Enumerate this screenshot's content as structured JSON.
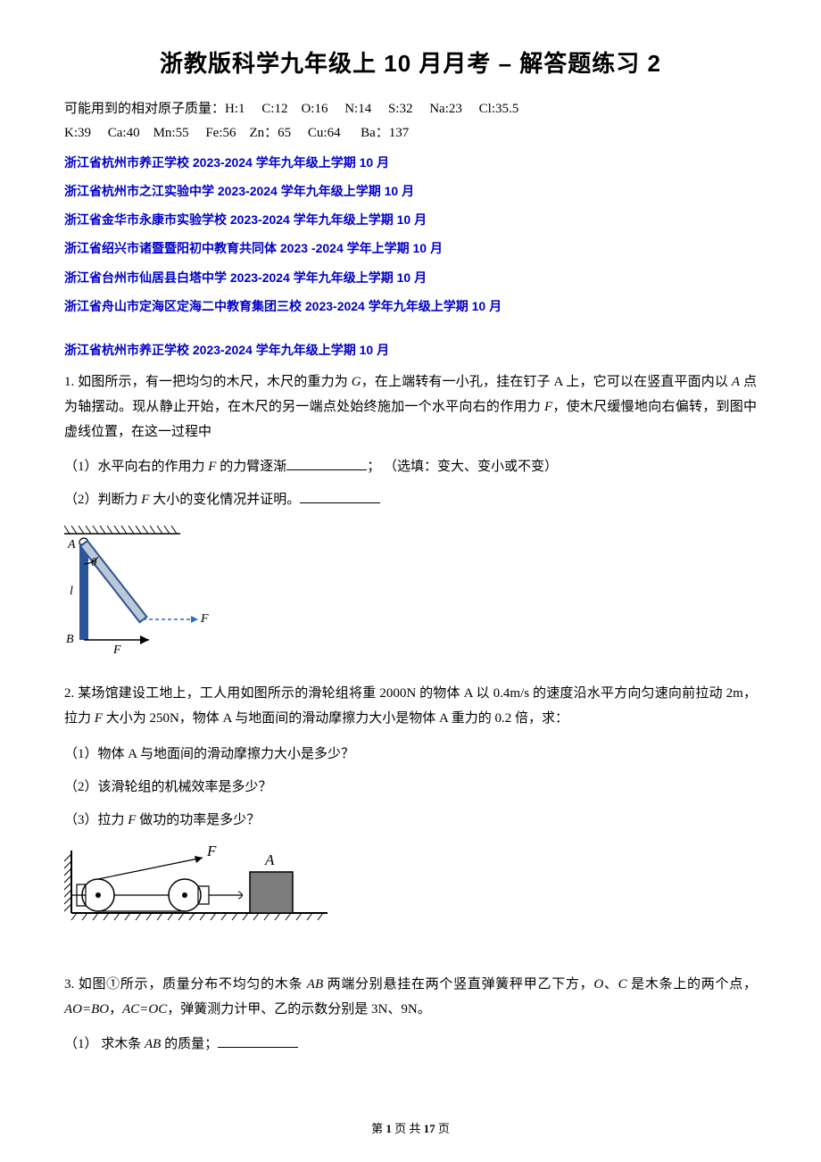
{
  "title": "浙教版科学九年级上 10 月月考 – 解答题练习 2",
  "atomic_masses": {
    "label": "可能用到的相对原子质量：",
    "row1": "H:1     C:12    O:16     N:14     S:32     Na:23     Cl:35.5",
    "row2": "K:39     Ca:40    Mn:55     Fe:56    Zn：65     Cu:64      Ba：137"
  },
  "source_links": [
    "浙江省杭州市养正学校 2023-2024 学年九年级上学期 10 月",
    "浙江省杭州市之江实验中学 2023-2024 学年九年级上学期 10 月",
    "浙江省金华市永康市实验学校 2023-2024 学年九年级上学期 10 月",
    "浙江省绍兴市诸暨暨阳初中教育共同体 2023 -2024 学年上学期 10 月",
    "浙江省台州市仙居县白塔中学 2023-2024 学年九年级上学期 10 月",
    "浙江省舟山市定海区定海二中教育集团三校 2023-2024 学年九年级上学期 10 月"
  ],
  "section_header": "浙江省杭州市养正学校 2023-2024 学年九年级上学期 10 月",
  "q1": {
    "prefix": "1. 如图所示，有一把均匀的木尺，木尺的重力为 ",
    "g": "G",
    "mid1": "，在上端转有一小孔，挂在钉子 A 上，它可以在竖直平面内以 ",
    "a": "A",
    "mid2": " 点为轴摆动。现从静止开始，在木尺的另一端点处始终施加一个水平向右的作用力 ",
    "f": "F",
    "end": "，使木尺缓慢地向右偏转，到图中虚线位置，在这一过程中",
    "sub1_a": "（1）水平向右的作用力 ",
    "sub1_b": " 的力臂逐渐",
    "sub1_c": "； （选填：变大、变小或不变）",
    "sub2_a": "（2）判断力 ",
    "sub2_b": " 大小的变化情况并证明。",
    "figure": {
      "colors": {
        "rod": "#2a5598",
        "rod_shadow": "#bdc8d6",
        "hatch": "#000000",
        "label": "#000000",
        "arrow_dash": "#2a6fc4"
      },
      "labels": {
        "A": "A",
        "theta": "θ",
        "l": "l",
        "B": "B",
        "F": "F"
      }
    }
  },
  "q2": {
    "text_a": "2. 某场馆建设工地上，工人用如图所示的滑轮组将重 2000N 的物体 A 以 0.4m/s 的速度沿水平方向匀速向前拉动 2m，拉力 ",
    "f": "F",
    "text_b": " 大小为 250N，物体 A 与地面间的滑动摩擦力大小是物体 A 重力的 0.2 倍，求：",
    "sub1": "（1）物体 A 与地面间的滑动摩擦力大小是多少？",
    "sub2": "（2）该滑轮组的机械效率是多少？",
    "sub3_a": "（3）拉力 ",
    "sub3_b": " 做功的功率是多少？",
    "figure": {
      "colors": {
        "wall_hatch": "#000000",
        "ground_hatch": "#000000",
        "pulley_stroke": "#000000",
        "pulley_fill": "#ffffff",
        "block_fill": "#7d7d7d",
        "rope": "#000000"
      },
      "labels": {
        "F": "F",
        "A": "A"
      }
    }
  },
  "q3": {
    "text_a": "3. 如图①所示，质量分布不均匀的木条 ",
    "ab": "AB",
    "text_b": " 两端分别悬挂在两个竖直弹簧秤甲乙下方，",
    "o": "O",
    "text_c": "、",
    "c": "C",
    "text_d": " 是木条上的两个点，",
    "ao_bo": "AO=BO",
    "text_e": "，",
    "ac_oc": "AC=OC",
    "text_f": "，弹簧测力计甲、乙的示数分别是 3N、9N。",
    "sub1_a": "（1） 求木条 ",
    "sub1_b": " 的质量；"
  },
  "footer": {
    "a": "第 ",
    "page": "1",
    "b": " 页 共 ",
    "total": "17",
    "c": " 页"
  }
}
